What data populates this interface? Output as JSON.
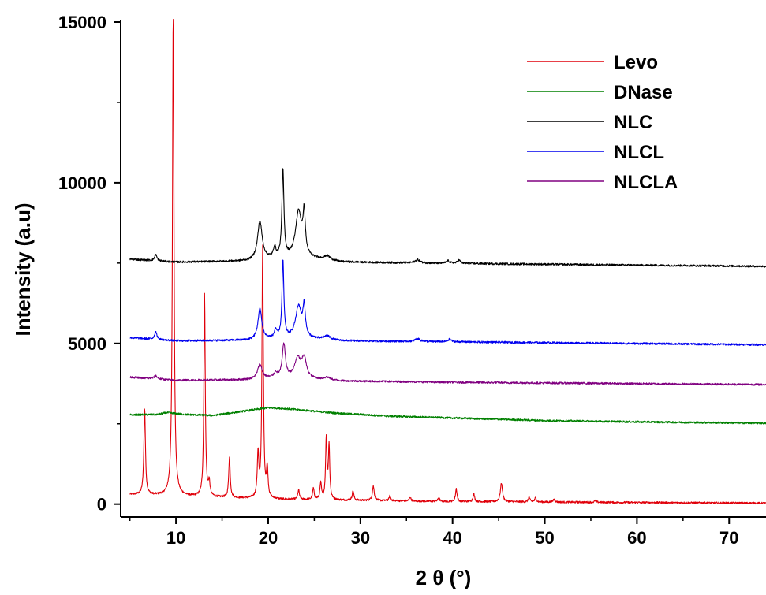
{
  "chart_data": {
    "type": "line",
    "title": "",
    "xlabel": "2 θ (°)",
    "ylabel": "Intensity (a.u)",
    "xlim": [
      4,
      74
    ],
    "ylim": [
      -400,
      15000
    ],
    "x_ticks": [
      10,
      20,
      30,
      40,
      50,
      60,
      70
    ],
    "y_ticks": [
      0,
      5000,
      10000,
      15000
    ],
    "legend_position": "top-right",
    "grid": false,
    "series": [
      {
        "name": "Levo",
        "color": "#e0000a",
        "baseline": [
          [
            5,
            300
          ],
          [
            20,
            150
          ],
          [
            40,
            80
          ],
          [
            74,
            30
          ]
        ],
        "peaks": [
          {
            "x": 6.6,
            "y": 2700,
            "w": 0.1
          },
          {
            "x": 9.7,
            "y": 15000,
            "w": 0.1
          },
          {
            "x": 13.1,
            "y": 6300,
            "w": 0.09
          },
          {
            "x": 13.6,
            "y": 420,
            "w": 0.1
          },
          {
            "x": 15.8,
            "y": 1250,
            "w": 0.1
          },
          {
            "x": 18.9,
            "y": 1350,
            "w": 0.1
          },
          {
            "x": 19.4,
            "y": 7800,
            "w": 0.09
          },
          {
            "x": 19.9,
            "y": 900,
            "w": 0.1
          },
          {
            "x": 23.3,
            "y": 300,
            "w": 0.1
          },
          {
            "x": 24.9,
            "y": 350,
            "w": 0.1
          },
          {
            "x": 25.7,
            "y": 500,
            "w": 0.1
          },
          {
            "x": 26.3,
            "y": 1900,
            "w": 0.09
          },
          {
            "x": 26.6,
            "y": 1650,
            "w": 0.09
          },
          {
            "x": 29.2,
            "y": 300,
            "w": 0.1
          },
          {
            "x": 31.4,
            "y": 450,
            "w": 0.12
          },
          {
            "x": 33.2,
            "y": 150,
            "w": 0.1
          },
          {
            "x": 35.4,
            "y": 120,
            "w": 0.1
          },
          {
            "x": 38.5,
            "y": 120,
            "w": 0.1
          },
          {
            "x": 40.4,
            "y": 400,
            "w": 0.1
          },
          {
            "x": 42.3,
            "y": 250,
            "w": 0.1
          },
          {
            "x": 45.3,
            "y": 580,
            "w": 0.14
          },
          {
            "x": 48.3,
            "y": 150,
            "w": 0.1
          },
          {
            "x": 49.0,
            "y": 130,
            "w": 0.1
          },
          {
            "x": 51.0,
            "y": 100,
            "w": 0.1
          },
          {
            "x": 55.5,
            "y": 60,
            "w": 0.1
          }
        ]
      },
      {
        "name": "DNase",
        "color": "#008000",
        "baseline": [
          [
            5,
            2780
          ],
          [
            8,
            2790
          ],
          [
            9,
            2850
          ],
          [
            11,
            2790
          ],
          [
            14,
            2760
          ],
          [
            17,
            2880
          ],
          [
            20,
            3000
          ],
          [
            22,
            2970
          ],
          [
            27,
            2840
          ],
          [
            33,
            2740
          ],
          [
            40,
            2680
          ],
          [
            50,
            2600
          ],
          [
            60,
            2560
          ],
          [
            74,
            2520
          ]
        ],
        "peaks": []
      },
      {
        "name": "NLC",
        "color": "#000000",
        "baseline": [
          [
            5,
            7620
          ],
          [
            10,
            7530
          ],
          [
            18,
            7560
          ],
          [
            21,
            7640
          ],
          [
            25,
            7620
          ],
          [
            28,
            7530
          ],
          [
            40,
            7490
          ],
          [
            74,
            7400
          ]
        ],
        "peaks": [
          {
            "x": 7.8,
            "y": 200,
            "w": 0.15
          },
          {
            "x": 19.1,
            "y": 1200,
            "w": 0.3
          },
          {
            "x": 20.7,
            "y": 320,
            "w": 0.15
          },
          {
            "x": 21.6,
            "y": 2700,
            "w": 0.13
          },
          {
            "x": 23.3,
            "y": 1450,
            "w": 0.4
          },
          {
            "x": 23.9,
            "y": 1250,
            "w": 0.15
          },
          {
            "x": 26.4,
            "y": 130,
            "w": 0.4
          },
          {
            "x": 36.2,
            "y": 100,
            "w": 0.3
          },
          {
            "x": 39.5,
            "y": 80,
            "w": 0.2
          },
          {
            "x": 40.7,
            "y": 100,
            "w": 0.2
          }
        ]
      },
      {
        "name": "NLCL",
        "color": "#0000ee",
        "baseline": [
          [
            5,
            5180
          ],
          [
            10,
            5080
          ],
          [
            18,
            5100
          ],
          [
            21,
            5150
          ],
          [
            25,
            5130
          ],
          [
            28,
            5080
          ],
          [
            40,
            5050
          ],
          [
            74,
            4960
          ]
        ],
        "peaks": [
          {
            "x": 7.8,
            "y": 250,
            "w": 0.15
          },
          {
            "x": 19.1,
            "y": 950,
            "w": 0.25
          },
          {
            "x": 20.8,
            "y": 250,
            "w": 0.15
          },
          {
            "x": 21.6,
            "y": 2400,
            "w": 0.12
          },
          {
            "x": 23.3,
            "y": 1000,
            "w": 0.4
          },
          {
            "x": 23.9,
            "y": 900,
            "w": 0.15
          },
          {
            "x": 26.4,
            "y": 120,
            "w": 0.4
          },
          {
            "x": 36.2,
            "y": 90,
            "w": 0.3
          },
          {
            "x": 39.7,
            "y": 80,
            "w": 0.2
          }
        ]
      },
      {
        "name": "NLCLA",
        "color": "#800080",
        "baseline": [
          [
            5,
            3950
          ],
          [
            10,
            3850
          ],
          [
            18,
            3870
          ],
          [
            21,
            3920
          ],
          [
            25,
            3880
          ],
          [
            28,
            3830
          ],
          [
            40,
            3790
          ],
          [
            74,
            3720
          ]
        ],
        "peaks": [
          {
            "x": 7.8,
            "y": 100,
            "w": 0.2
          },
          {
            "x": 19.1,
            "y": 450,
            "w": 0.3
          },
          {
            "x": 20.8,
            "y": 150,
            "w": 0.2
          },
          {
            "x": 21.7,
            "y": 1050,
            "w": 0.2
          },
          {
            "x": 23.2,
            "y": 600,
            "w": 0.4
          },
          {
            "x": 23.9,
            "y": 600,
            "w": 0.3
          },
          {
            "x": 26.4,
            "y": 80,
            "w": 0.4
          }
        ]
      }
    ]
  }
}
